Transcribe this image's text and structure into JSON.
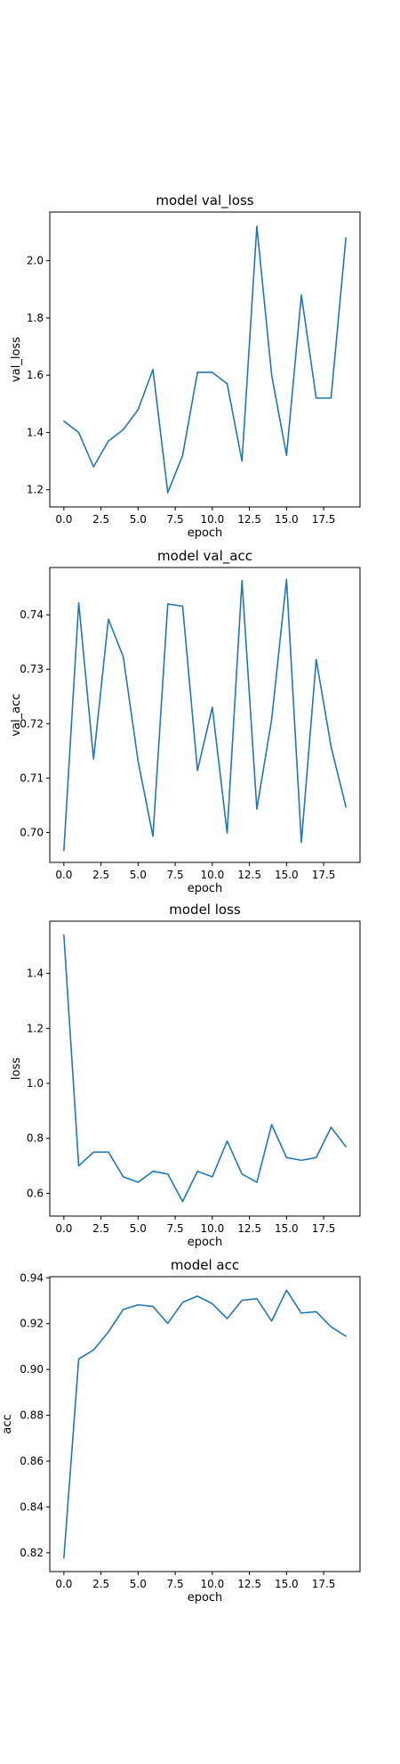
{
  "chart_data": [
    {
      "type": "line",
      "title": "model val_loss",
      "xlabel": "epoch",
      "ylabel": "val_loss",
      "xlim": [
        -0.95,
        19.95
      ],
      "ylim": [
        1.14,
        2.17
      ],
      "xticks": [
        0.0,
        2.5,
        5.0,
        7.5,
        10.0,
        12.5,
        15.0,
        17.5
      ],
      "xtick_labels": [
        "0.0",
        "2.5",
        "5.0",
        "7.5",
        "10.0",
        "12.5",
        "15.0",
        "17.5"
      ],
      "yticks": [
        1.2,
        1.4,
        1.6,
        1.8,
        2.0
      ],
      "ytick_labels": [
        "1.2",
        "1.4",
        "1.6",
        "1.8",
        "2.0"
      ],
      "grid": false,
      "x": [
        0,
        1,
        2,
        3,
        4,
        5,
        6,
        7,
        8,
        9,
        10,
        11,
        12,
        13,
        14,
        15,
        16,
        17,
        18,
        19
      ],
      "series": [
        {
          "color": "#1f77b4",
          "values": [
            1.44,
            1.4,
            1.28,
            1.37,
            1.41,
            1.48,
            1.62,
            1.19,
            1.32,
            1.61,
            1.61,
            1.57,
            1.3,
            2.12,
            1.6,
            1.32,
            1.88,
            1.52,
            1.52,
            2.08
          ]
        }
      ]
    },
    {
      "type": "line",
      "title": "model val_acc",
      "xlabel": "epoch",
      "ylabel": "val_acc",
      "xlim": [
        -0.95,
        19.95
      ],
      "ylim": [
        0.6945,
        0.7487
      ],
      "xticks": [
        0.0,
        2.5,
        5.0,
        7.5,
        10.0,
        12.5,
        15.0,
        17.5
      ],
      "xtick_labels": [
        "0.0",
        "2.5",
        "5.0",
        "7.5",
        "10.0",
        "12.5",
        "15.0",
        "17.5"
      ],
      "yticks": [
        0.7,
        0.71,
        0.72,
        0.73,
        0.74
      ],
      "ytick_labels": [
        "0.70",
        "0.71",
        "0.72",
        "0.73",
        "0.74"
      ],
      "grid": false,
      "x": [
        0,
        1,
        2,
        3,
        4,
        5,
        6,
        7,
        8,
        9,
        10,
        11,
        12,
        13,
        14,
        15,
        16,
        17,
        18,
        19
      ],
      "series": [
        {
          "color": "#1f77b4",
          "values": [
            0.6967,
            0.7422,
            0.7135,
            0.7392,
            0.7323,
            0.7131,
            0.6993,
            0.742,
            0.7416,
            0.7114,
            0.723,
            0.6999,
            0.7463,
            0.7043,
            0.7208,
            0.7465,
            0.6982,
            0.7318,
            0.7158,
            0.7047
          ]
        }
      ]
    },
    {
      "type": "line",
      "title": "model loss",
      "xlabel": "epoch",
      "ylabel": "loss",
      "xlim": [
        -0.95,
        19.95
      ],
      "ylim": [
        0.517,
        1.59
      ],
      "xticks": [
        0.0,
        2.5,
        5.0,
        7.5,
        10.0,
        12.5,
        15.0,
        17.5
      ],
      "xtick_labels": [
        "0.0",
        "2.5",
        "5.0",
        "7.5",
        "10.0",
        "12.5",
        "15.0",
        "17.5"
      ],
      "yticks": [
        0.6,
        0.8,
        1.0,
        1.2,
        1.4
      ],
      "ytick_labels": [
        "0.6",
        "0.8",
        "1.0",
        "1.2",
        "1.4"
      ],
      "grid": false,
      "x": [
        0,
        1,
        2,
        3,
        4,
        5,
        6,
        7,
        8,
        9,
        10,
        11,
        12,
        13,
        14,
        15,
        16,
        17,
        18,
        19
      ],
      "series": [
        {
          "color": "#1f77b4",
          "values": [
            1.54,
            0.7,
            0.75,
            0.75,
            0.66,
            0.64,
            0.68,
            0.67,
            0.57,
            0.68,
            0.66,
            0.79,
            0.67,
            0.64,
            0.85,
            0.73,
            0.72,
            0.73,
            0.84,
            0.77
          ]
        }
      ]
    },
    {
      "type": "line",
      "title": "model acc",
      "xlabel": "epoch",
      "ylabel": "acc",
      "xlim": [
        -0.95,
        19.95
      ],
      "ylim": [
        0.8118,
        0.9405
      ],
      "xticks": [
        0.0,
        2.5,
        5.0,
        7.5,
        10.0,
        12.5,
        15.0,
        17.5
      ],
      "xtick_labels": [
        "0.0",
        "2.5",
        "5.0",
        "7.5",
        "10.0",
        "12.5",
        "15.0",
        "17.5"
      ],
      "yticks": [
        0.82,
        0.84,
        0.86,
        0.88,
        0.9,
        0.92,
        0.94
      ],
      "ytick_labels": [
        "0.82",
        "0.84",
        "0.86",
        "0.88",
        "0.90",
        "0.92",
        "0.94"
      ],
      "grid": false,
      "x": [
        0,
        1,
        2,
        3,
        4,
        5,
        6,
        7,
        8,
        9,
        10,
        11,
        12,
        13,
        14,
        15,
        16,
        17,
        18,
        19
      ],
      "series": [
        {
          "color": "#1f77b4",
          "values": [
            0.8177,
            0.9046,
            0.9085,
            0.9164,
            0.9262,
            0.9282,
            0.9275,
            0.9201,
            0.9293,
            0.932,
            0.9287,
            0.9222,
            0.9302,
            0.9309,
            0.9211,
            0.9346,
            0.9246,
            0.9252,
            0.9186,
            0.9145
          ]
        }
      ]
    }
  ]
}
